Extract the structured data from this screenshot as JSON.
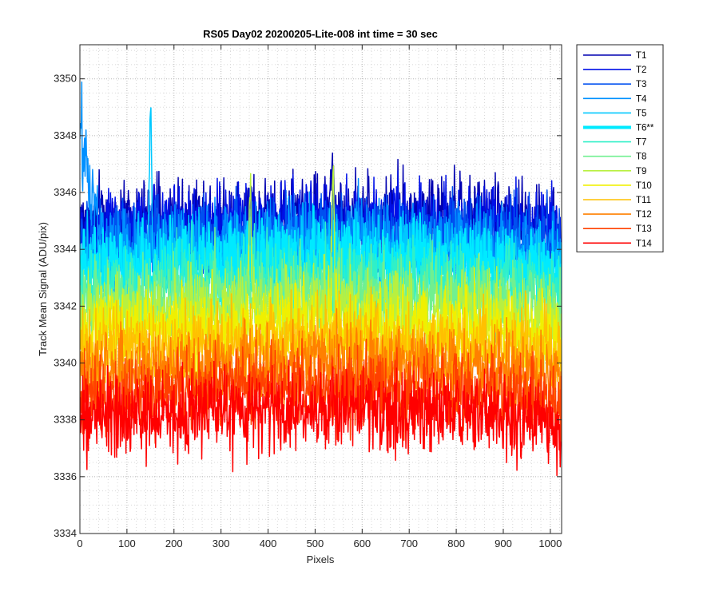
{
  "chart_data": {
    "type": "line",
    "title": "RS05 Day02 20200205-Lite-008 int time = 30 sec",
    "xlabel": "Pixels",
    "ylabel": "Track Mean Signal (ADU/pix)",
    "xlim": [
      0,
      1024
    ],
    "ylim": [
      3334,
      3351.2
    ],
    "xticks": [
      0,
      100,
      200,
      300,
      400,
      500,
      600,
      700,
      800,
      900,
      1000
    ],
    "xtick_labels": [
      "0",
      "100",
      "200",
      "300",
      "400",
      "500",
      "600",
      "700",
      "800",
      "900",
      "1000"
    ],
    "yticks": [
      3334,
      3336,
      3338,
      3340,
      3342,
      3344,
      3346,
      3348,
      3350
    ],
    "ytick_labels": [
      "3334",
      "3336",
      "3338",
      "3340",
      "3342",
      "3344",
      "3346",
      "3348",
      "3350"
    ],
    "grid": "major and minor, dotted",
    "legend_position": "outside-right-top",
    "series": [
      {
        "name": "T1",
        "color": "#0000b0",
        "mean": 3344.9,
        "noise": 1.0
      },
      {
        "name": "T2",
        "color": "#0010e8",
        "mean": 3344.6,
        "noise": 1.0
      },
      {
        "name": "T3",
        "color": "#0050f0",
        "mean": 3344.2,
        "noise": 1.0
      },
      {
        "name": "T4",
        "color": "#0090ff",
        "mean": 3343.9,
        "noise": 1.0
      },
      {
        "name": "T5",
        "color": "#00c8ff",
        "mean": 3343.5,
        "noise": 1.0
      },
      {
        "name": "T6**",
        "color": "#00eaff",
        "mean": 3343.2,
        "noise": 1.0,
        "highlighted": true
      },
      {
        "name": "T7",
        "color": "#30f0c8",
        "mean": 3342.6,
        "noise": 1.0
      },
      {
        "name": "T8",
        "color": "#70f090",
        "mean": 3342.1,
        "noise": 1.0
      },
      {
        "name": "T9",
        "color": "#b8f040",
        "mean": 3341.6,
        "noise": 1.0
      },
      {
        "name": "T10",
        "color": "#f0f000",
        "mean": 3341.0,
        "noise": 1.0
      },
      {
        "name": "T11",
        "color": "#ffc000",
        "mean": 3340.4,
        "noise": 1.0
      },
      {
        "name": "T12",
        "color": "#ff8000",
        "mean": 3339.6,
        "noise": 1.0
      },
      {
        "name": "T13",
        "color": "#ff4000",
        "mean": 3338.8,
        "noise": 1.0
      },
      {
        "name": "T14",
        "color": "#ff0000",
        "mean": 3338.0,
        "noise": 1.0
      }
    ],
    "features": [
      {
        "series": "T4",
        "x_range": [
          0,
          50
        ],
        "start_value": 3348.5,
        "note": "high edge values"
      },
      {
        "series": "T5",
        "x": 150,
        "value": 3350.2
      },
      {
        "series": "T9",
        "x": 362,
        "value": 3347.3
      },
      {
        "series": "T9",
        "x": 538,
        "value": 3348.3
      },
      {
        "series": "T1",
        "x": 535,
        "value": 3348.6
      }
    ]
  }
}
